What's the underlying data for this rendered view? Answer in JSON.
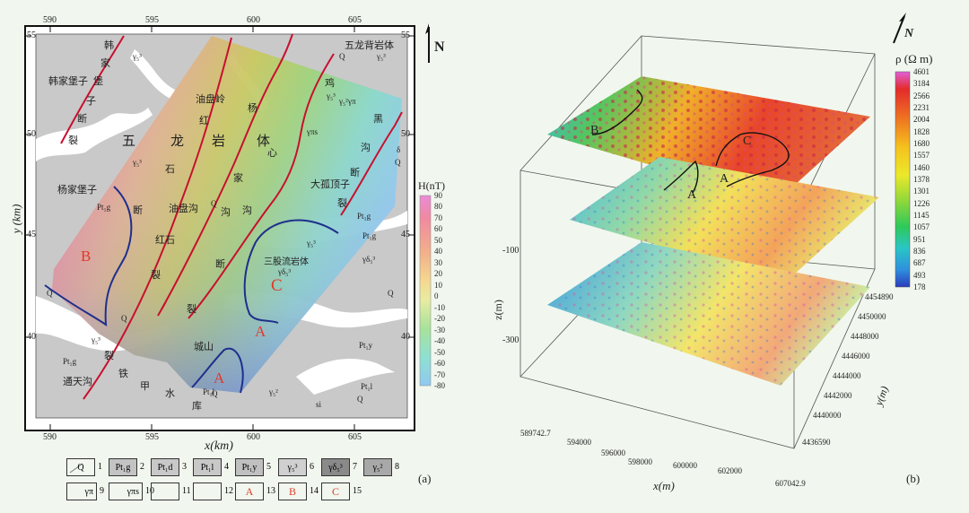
{
  "panel_a": {
    "caption": "(a)",
    "north": "N",
    "x_axis_title": "x(km)",
    "y_axis_title": "y (km)",
    "x_ticks": [
      "590",
      "595",
      "600",
      "605"
    ],
    "y_ticks": [
      "55",
      "50",
      "45",
      "40"
    ],
    "colorbar_title": "H(nT)",
    "colorbar_labels": [
      "90",
      "80",
      "70",
      "60",
      "50",
      "40",
      "30",
      "20",
      "10",
      "0",
      "-10",
      "-20",
      "-30",
      "-40",
      "-50",
      "-60",
      "-70",
      "-80"
    ],
    "map_labels": {
      "wulong_beiyan": "五龙背岩体",
      "hanjiapuzi": "韩家堡子",
      "yangjiapuzi": "杨家堡子",
      "tongtiangou": "通天沟",
      "dagudingzi": "大孤顶子",
      "sangu_liuyanti": "三股流岩体",
      "youpanling": "油盘岭",
      "youpangou": "油盘沟",
      "hongshi": "红石",
      "chengshan": "城山",
      "big_chars": [
        "五",
        "龙",
        "岩",
        "体"
      ],
      "fault_han": [
        "韩",
        "家",
        "堡",
        "子",
        "断",
        "裂"
      ],
      "fault_yang": [
        "杨",
        "家",
        "沟",
        "断",
        "裂"
      ],
      "fault_hong": [
        "红",
        "石",
        "断",
        "裂"
      ],
      "fault_ji": [
        "鸡",
        "心",
        "沟"
      ],
      "fault_hei": [
        "黑",
        "沟",
        "断",
        "裂"
      ],
      "fault_tie": [
        "铁",
        "甲",
        "水",
        "库"
      ],
      "Q_labels": [
        "Q",
        "Q",
        "Q",
        "Q",
        "Q",
        "Q",
        "Q"
      ],
      "pt_labels": [
        "Pt₁g",
        "Pt₁g",
        "Pt₁g",
        "Pt₁g",
        "Pt₁y",
        "Pt₁l",
        "Pt₁l"
      ],
      "gamma_labels": [
        "γ₅³",
        "γ₅³",
        "γ₅³",
        "γ₅³",
        "γ₅³",
        "γ₅³",
        "γ₅²",
        "γ₅²",
        "γπ",
        "γπs",
        "γδ₅³",
        "γδ₅³"
      ],
      "misc": [
        "Q",
        "δ",
        "si",
        "Q"
      ]
    },
    "zone_letters": [
      "A",
      "A",
      "B",
      "C"
    ],
    "legend": [
      {
        "sym": "Q",
        "num": "1"
      },
      {
        "sym": "Pt₁g",
        "num": "2"
      },
      {
        "sym": "Pt₁d",
        "num": "3"
      },
      {
        "sym": "Pt₁l",
        "num": "4"
      },
      {
        "sym": "Pt₁y",
        "num": "5"
      },
      {
        "sym": "γ₅³",
        "num": "6"
      },
      {
        "sym": "γδ₅³",
        "num": "7"
      },
      {
        "sym": "γ₅²",
        "num": "8"
      },
      {
        "sym": "γπ",
        "num": "9"
      },
      {
        "sym": "γπs",
        "num": "10"
      },
      {
        "sym": "",
        "num": "11"
      },
      {
        "sym": "",
        "num": "12"
      },
      {
        "sym": "A",
        "num": "13"
      },
      {
        "sym": "B",
        "num": "14"
      },
      {
        "sym": "C",
        "num": "15"
      }
    ]
  },
  "panel_b": {
    "caption": "(b)",
    "north": "N",
    "colorbar_title": "ρ (Ω m)",
    "colorbar_labels": [
      "4601",
      "3184",
      "2566",
      "2231",
      "2004",
      "1828",
      "1680",
      "1557",
      "1460",
      "1378",
      "1301",
      "1226",
      "1145",
      "1057",
      "951",
      "836",
      "687",
      "493",
      "178"
    ],
    "z_axis_title": "z(m)",
    "z_ticks": [
      "-100",
      "-300"
    ],
    "x_axis_title": "x(m)",
    "x_ticks": [
      "589742.7",
      "594000",
      "596000",
      "598000",
      "600000",
      "602000",
      "607042.9"
    ],
    "y_axis_title": "y(m)",
    "y_ticks": [
      "4454890",
      "4450000",
      "4448000",
      "4446000",
      "4444000",
      "4442000",
      "4440000",
      "4436590"
    ],
    "zone_letters": [
      "B",
      "A",
      "A",
      "C"
    ]
  },
  "colors": {
    "fault": "#c8102e",
    "boundary": "#1f2f8c",
    "zone_letter": "#e03a2a",
    "background": "#f1f7ee"
  }
}
